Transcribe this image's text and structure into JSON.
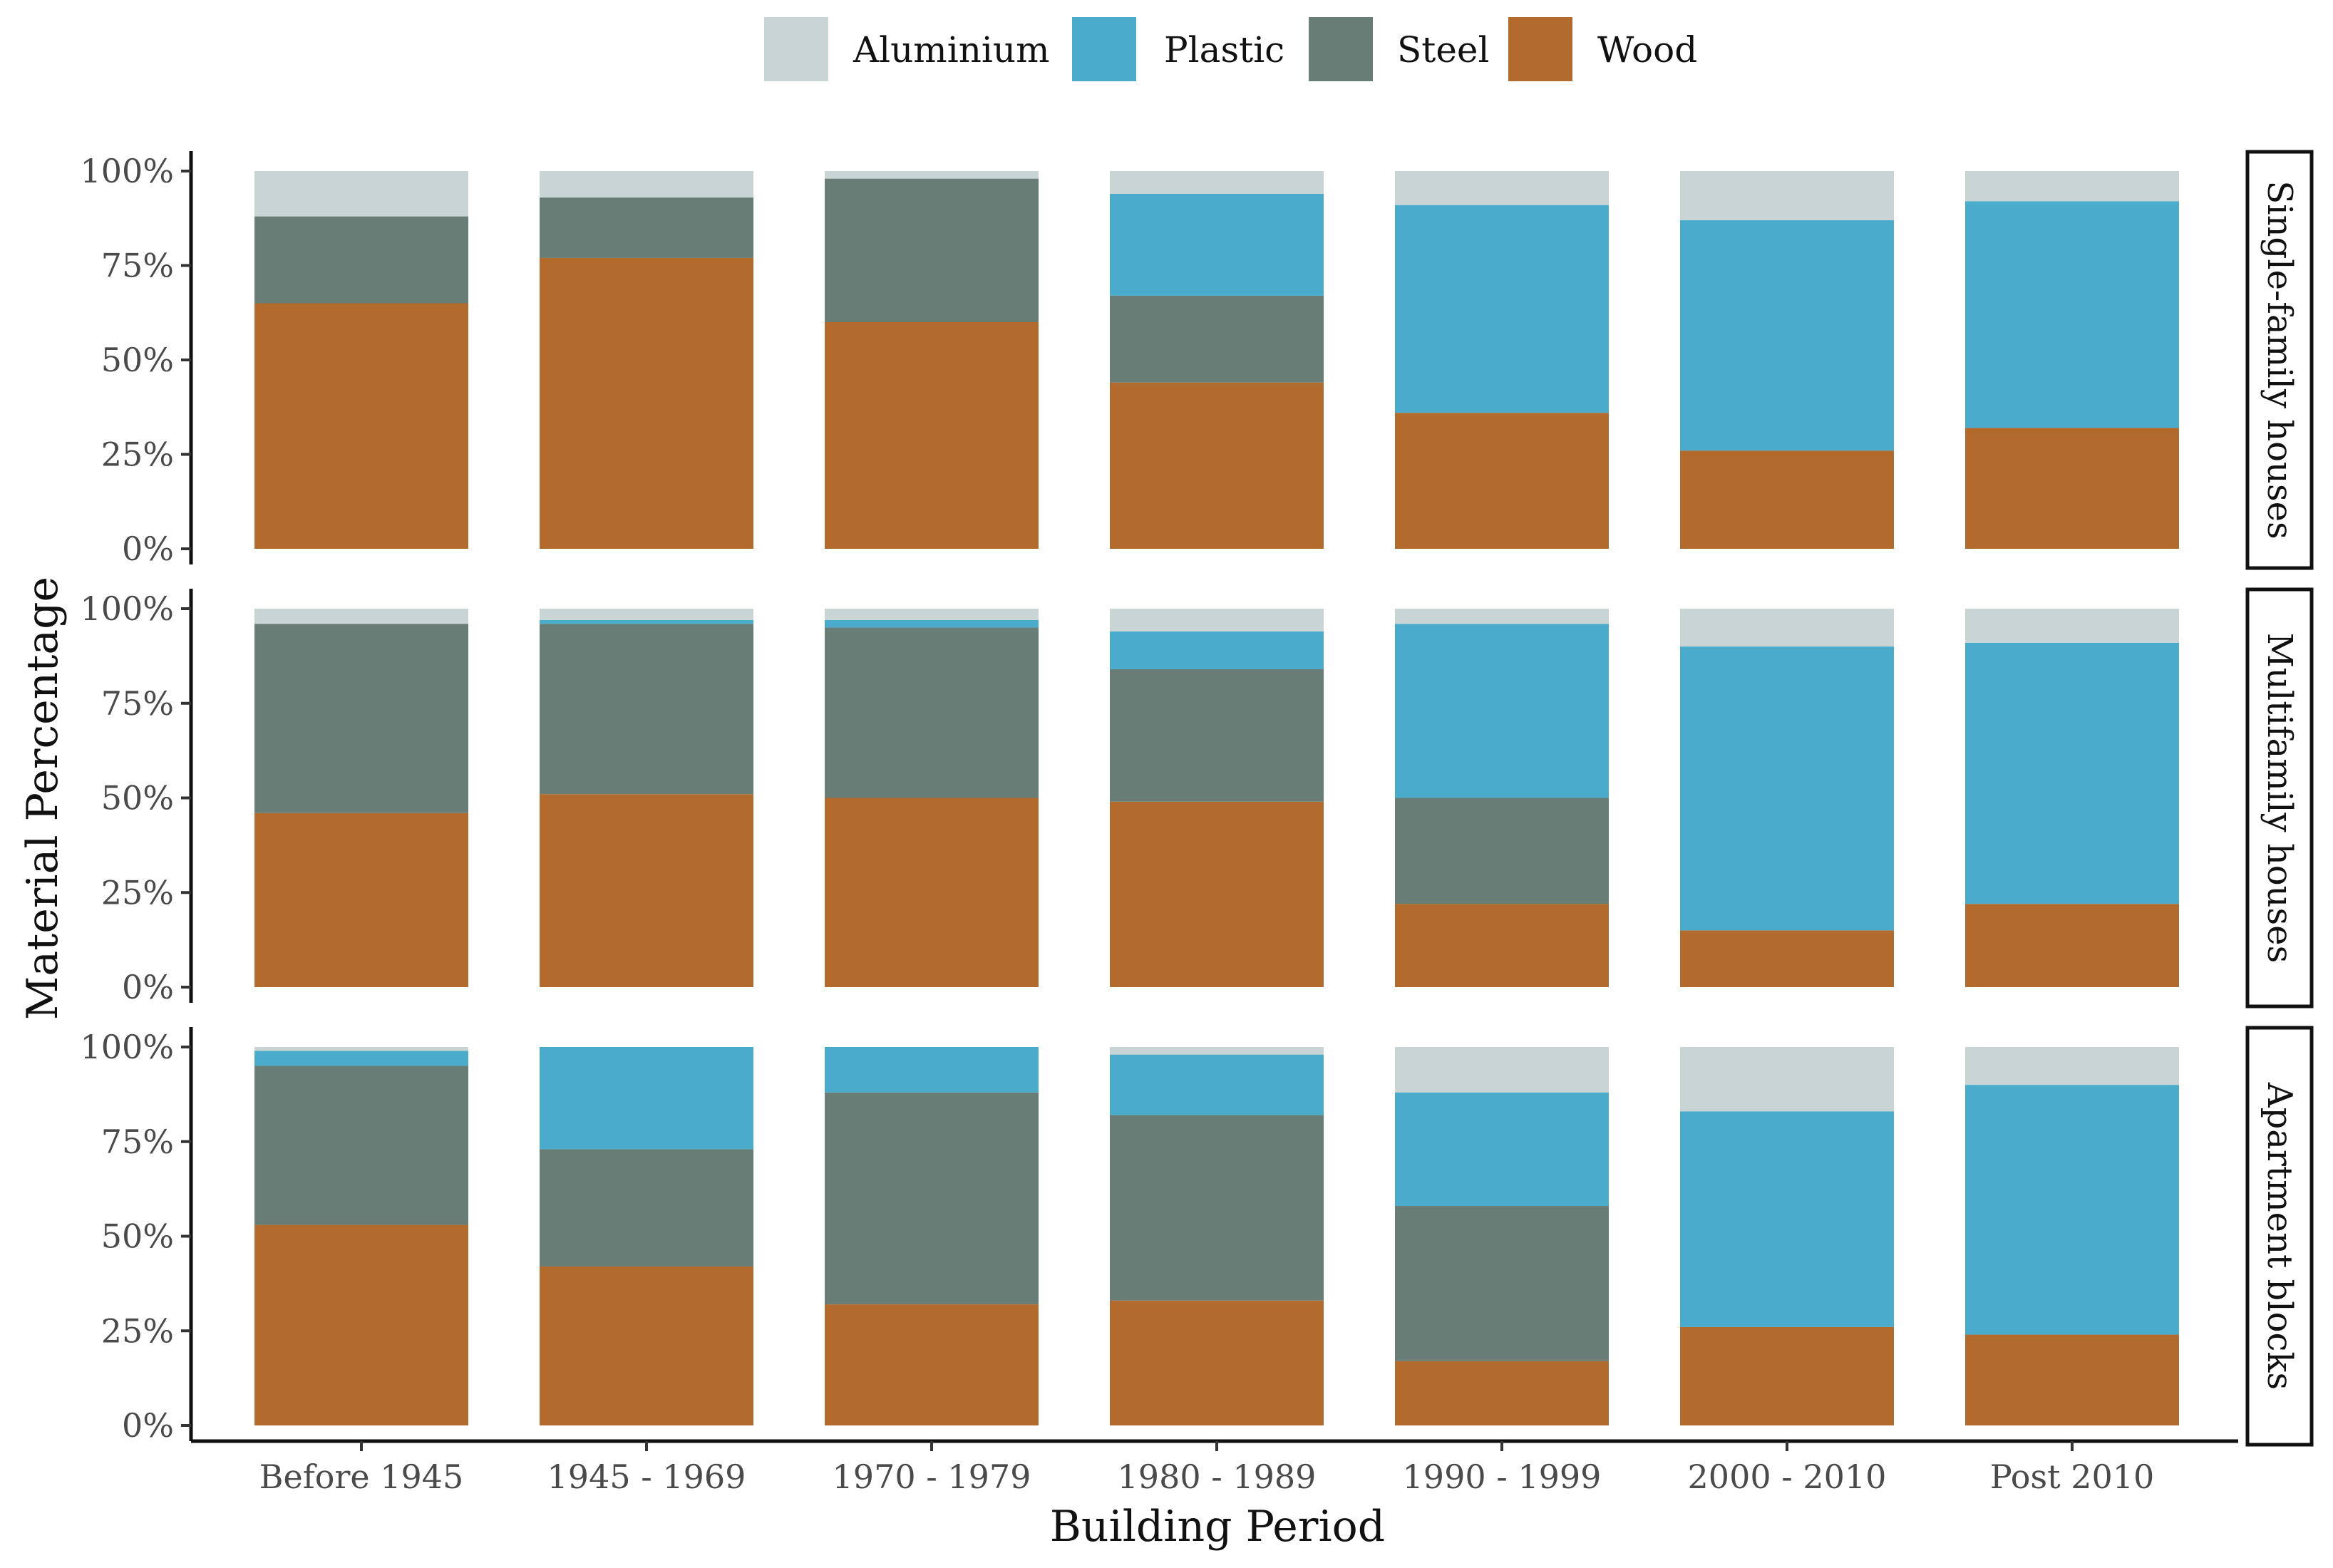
{
  "chart_data": {
    "type": "bar",
    "stacked": true,
    "xlabel": "Building Period",
    "ylabel": "Material Percentage",
    "ylim": [
      0,
      100
    ],
    "y_ticks": [
      "0%",
      "25%",
      "50%",
      "75%",
      "100%"
    ],
    "categories": [
      "Before 1945",
      "1945 - 1969",
      "1970 - 1979",
      "1980 - 1989",
      "1990 - 1999",
      "2000 - 2010",
      "Post 2010"
    ],
    "legend": {
      "position": "top",
      "entries": [
        {
          "name": "Aluminium",
          "color": "#c9d5d5"
        },
        {
          "name": "Plastic",
          "color": "#4aabcb"
        },
        {
          "name": "Steel",
          "color": "#687d75"
        },
        {
          "name": "Wood",
          "color": "#b26a2d"
        }
      ]
    },
    "stack_order": [
      "Wood",
      "Steel",
      "Plastic",
      "Aluminium"
    ],
    "panels": [
      {
        "label": "Single-family houses",
        "series": [
          {
            "name": "Wood",
            "values": [
              65,
              77,
              60,
              44,
              36,
              26,
              32
            ]
          },
          {
            "name": "Steel",
            "values": [
              23,
              16,
              38,
              23,
              0,
              0,
              0
            ]
          },
          {
            "name": "Plastic",
            "values": [
              0,
              0,
              0,
              27,
              55,
              61,
              60
            ]
          },
          {
            "name": "Aluminium",
            "values": [
              12,
              7,
              2,
              6,
              9,
              13,
              8
            ]
          }
        ]
      },
      {
        "label": "Multifamily houses",
        "series": [
          {
            "name": "Wood",
            "values": [
              46,
              51,
              50,
              49,
              22,
              15,
              22
            ]
          },
          {
            "name": "Steel",
            "values": [
              50,
              45,
              45,
              35,
              28,
              0,
              0
            ]
          },
          {
            "name": "Plastic",
            "values": [
              0,
              1,
              2,
              10,
              46,
              75,
              69
            ]
          },
          {
            "name": "Aluminium",
            "values": [
              4,
              3,
              3,
              6,
              4,
              10,
              9
            ]
          }
        ]
      },
      {
        "label": "Apartment blocks",
        "series": [
          {
            "name": "Wood",
            "values": [
              53,
              42,
              32,
              33,
              17,
              26,
              24
            ]
          },
          {
            "name": "Steel",
            "values": [
              42,
              31,
              56,
              49,
              41,
              0,
              0
            ]
          },
          {
            "name": "Plastic",
            "values": [
              4,
              27,
              12,
              16,
              30,
              57,
              66
            ]
          },
          {
            "name": "Aluminium",
            "values": [
              1,
              0,
              0,
              2,
              12,
              17,
              10
            ]
          }
        ]
      }
    ]
  }
}
